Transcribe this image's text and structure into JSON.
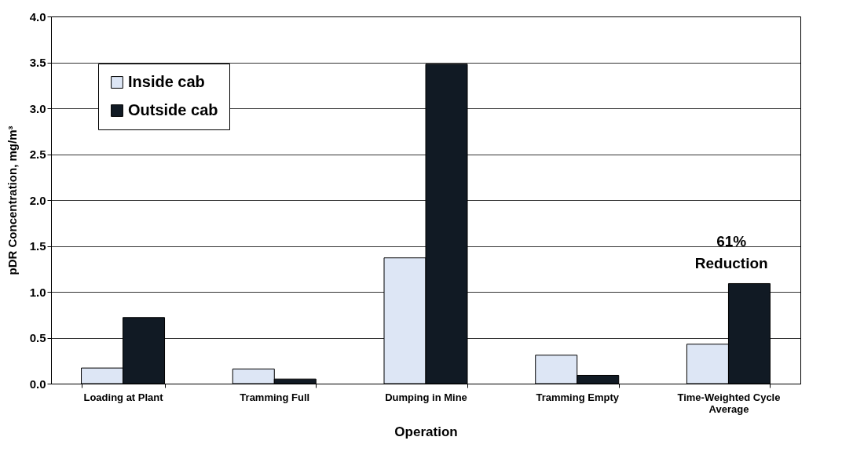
{
  "chart_data": {
    "type": "bar",
    "xlabel": "Operation",
    "ylabel": "pDR Concentration, mg/m³",
    "categories": [
      "Loading at Plant",
      "Tramming Full",
      "Dumping in Mine",
      "Tramming Empty",
      "Time-Weighted Cycle Average"
    ],
    "series": [
      {
        "name": "Inside cab",
        "color": "#dde6f5",
        "values": [
          0.17,
          0.16,
          1.37,
          0.31,
          0.43
        ]
      },
      {
        "name": "Outside cab",
        "color": "#111a24",
        "values": [
          0.72,
          0.05,
          3.48,
          0.09,
          1.09
        ]
      }
    ],
    "ylim": [
      0,
      4
    ],
    "yticks": [
      {
        "value": 0,
        "label": "0.0"
      },
      {
        "value": 0.5,
        "label": "0.5"
      },
      {
        "value": 1,
        "label": "1.0"
      },
      {
        "value": 1.5,
        "label": "1.5"
      },
      {
        "value": 2,
        "label": "2.0"
      },
      {
        "value": 2.5,
        "label": "2.5"
      },
      {
        "value": 3,
        "label": "3.0"
      },
      {
        "value": 3.5,
        "label": "3.5"
      },
      {
        "value": 4,
        "label": "4.0"
      }
    ],
    "grid": "y",
    "legend": "top left",
    "annotations": [
      "61% Reduction"
    ]
  }
}
